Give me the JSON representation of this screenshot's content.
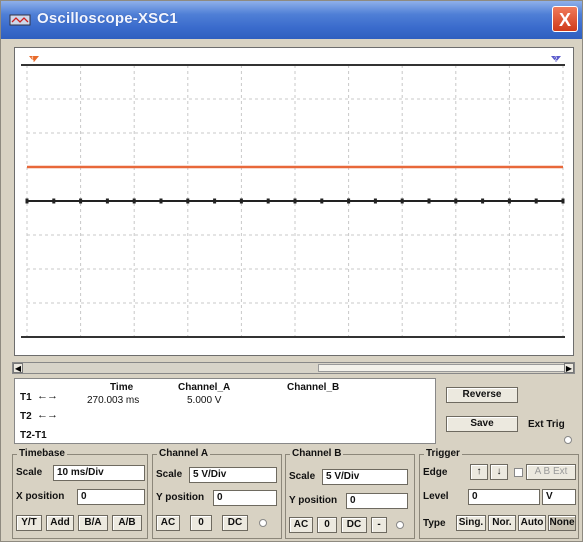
{
  "window": {
    "title": "Oscilloscope-XSC1",
    "close_label": "X"
  },
  "colors": {
    "channel_a_trace": "#e8683a",
    "channel_b_trace": "#222222",
    "grid": "#c8c8c8",
    "cursor_t1": "#e86a2a",
    "cursor_t2": "#5a5acc"
  },
  "screen": {
    "grid_divisions_x": 10,
    "grid_divisions_y": 8,
    "channel_a_level_div": 1,
    "channel_b_level_div": 0
  },
  "readout": {
    "rows": [
      "T1",
      "T2",
      "T2-T1"
    ],
    "arrows": "←→",
    "time_header": "Time",
    "channel_a_header": "Channel_A",
    "channel_b_header": "Channel_B",
    "t1_time": "270.003 ms",
    "t1_channel_a": "5.000 V"
  },
  "buttons": {
    "reverse": "Reverse",
    "save": "Save",
    "ext_trig": "Ext Trig"
  },
  "timebase": {
    "title": "Timebase",
    "scale_label": "Scale",
    "scale_value": "10 ms/Div",
    "xpos_label": "X position",
    "xpos_value": "0",
    "modes": [
      "Y/T",
      "Add",
      "B/A",
      "A/B"
    ]
  },
  "channel_a": {
    "title": "Channel A",
    "scale_label": "Scale",
    "scale_value": "5  V/Div",
    "ypos_label": "Y position",
    "ypos_value": "0",
    "coupling": [
      "AC",
      "0",
      "DC"
    ]
  },
  "channel_b": {
    "title": "Channel B",
    "scale_label": "Scale",
    "scale_value": "5  V/Div",
    "ypos_label": "Y position",
    "ypos_value": "0",
    "coupling": [
      "AC",
      "0",
      "DC"
    ],
    "dash": "-"
  },
  "trigger": {
    "title": "Trigger",
    "edge_label": "Edge",
    "rising": "↑",
    "falling": "↓",
    "ab_label": "A  B  Ext",
    "level_label": "Level",
    "level_value": "0",
    "level_unit": "V",
    "type_label": "Type",
    "types": [
      "Sing.",
      "Nor.",
      "Auto",
      "None"
    ]
  }
}
